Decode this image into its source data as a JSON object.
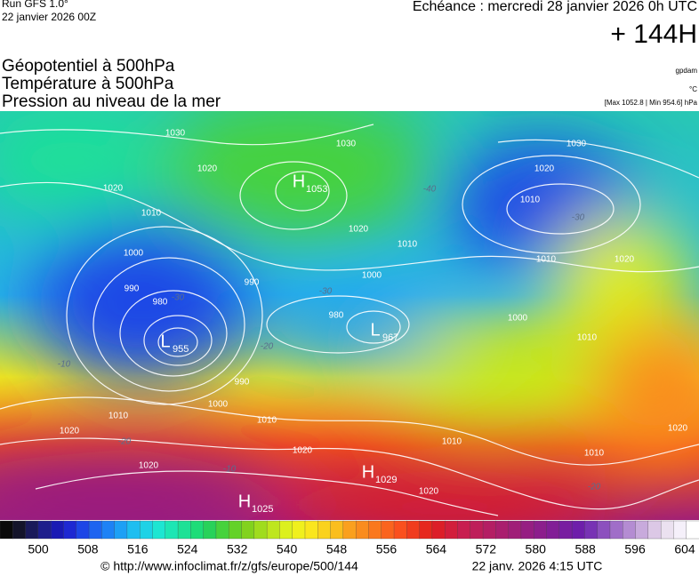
{
  "header": {
    "run": "Run GFS 1.0°",
    "run_date": "22 janvier 2026 00Z",
    "valid": "Echéance : mercredi 28 janvier 2026 0h UTC",
    "lead": "+ 144H",
    "fields": [
      "Géopotentiel à 500hPa",
      "Température à 500hPa",
      "Pression au niveau de la mer"
    ],
    "units": [
      "gpdam",
      "°C",
      "[Max 1052.8 | Min 954.6] hPa"
    ]
  },
  "map": {
    "centers": [
      {
        "letter": "H",
        "value": "1053"
      },
      {
        "letter": "L",
        "value": "955"
      },
      {
        "letter": "L",
        "value": "967"
      },
      {
        "letter": "H",
        "value": "1029"
      },
      {
        "letter": "H",
        "value": "1025"
      }
    ],
    "isobar_labels": [
      "1030",
      "1020",
      "1020",
      "1010",
      "1000",
      "990",
      "980",
      "990",
      "980",
      "1000",
      "1010",
      "1020",
      "1030",
      "1030",
      "1020",
      "1010",
      "1010",
      "1000",
      "1010",
      "1020",
      "990",
      "1000",
      "1010",
      "1020",
      "1010",
      "1020",
      "1010",
      "1020",
      "1020",
      "1010",
      "1020"
    ],
    "temperature_labels": [
      "-30",
      "-30",
      "-30",
      "-20",
      "-20",
      "-10",
      "-10",
      "-20",
      "-40"
    ]
  },
  "colorbar": {
    "ticks": [
      500,
      508,
      516,
      524,
      532,
      540,
      548,
      556,
      564,
      572,
      580,
      588,
      596,
      604
    ],
    "colors": [
      "#0a0a0a",
      "#14142a",
      "#1a1a5a",
      "#1e1e8c",
      "#1a1ab4",
      "#1e28d2",
      "#1e46e6",
      "#1e64f0",
      "#1e82f5",
      "#1ea0f5",
      "#1ebef0",
      "#1ed2e6",
      "#1ee6d2",
      "#1ee6b4",
      "#1ee196",
      "#1edc78",
      "#28d25a",
      "#46d23c",
      "#64d228",
      "#82d21e",
      "#a0dc1e",
      "#bee61e",
      "#dcf01e",
      "#f0f01e",
      "#fae61e",
      "#fad21e",
      "#fabe1e",
      "#faa01e",
      "#fa8c1e",
      "#fa781e",
      "#fa641e",
      "#fa501e",
      "#f03c1e",
      "#e6281e",
      "#dc1e28",
      "#d21e3c",
      "#c81e50",
      "#be1e5a",
      "#b41e64",
      "#aa1e6e",
      "#a01e78",
      "#961e82",
      "#8c1e8c",
      "#821e96",
      "#781ea0",
      "#6e1eaa",
      "#7832b4",
      "#8c50be",
      "#a06ec8",
      "#b48cd2",
      "#c8aadc",
      "#dcc8e6",
      "#ebe1f0",
      "#f5f0fa",
      "#ffffff"
    ]
  },
  "footer": {
    "source": "© http://www.infoclimat.fr/z/gfs/europe/500/144",
    "generated": "22 janv. 2026  4:15 UTC"
  }
}
